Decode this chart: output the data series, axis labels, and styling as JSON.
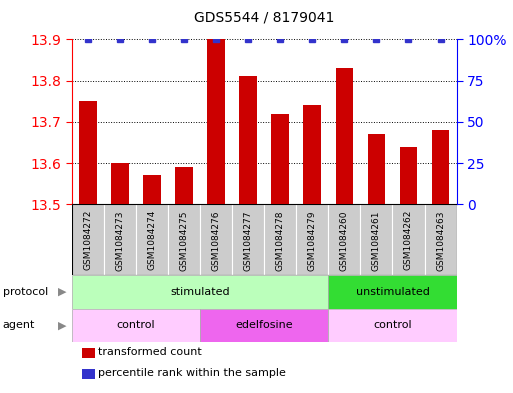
{
  "title": "GDS5544 / 8179041",
  "samples": [
    "GSM1084272",
    "GSM1084273",
    "GSM1084274",
    "GSM1084275",
    "GSM1084276",
    "GSM1084277",
    "GSM1084278",
    "GSM1084279",
    "GSM1084260",
    "GSM1084261",
    "GSM1084262",
    "GSM1084263"
  ],
  "transformed_count": [
    13.75,
    13.6,
    13.57,
    13.59,
    13.9,
    13.81,
    13.72,
    13.74,
    13.83,
    13.67,
    13.64,
    13.68
  ],
  "percentile_rank": [
    100,
    100,
    100,
    100,
    100,
    100,
    100,
    100,
    100,
    100,
    100,
    100
  ],
  "ylim_left": [
    13.5,
    13.9
  ],
  "ylim_right": [
    0,
    100
  ],
  "yticks_left": [
    13.5,
    13.6,
    13.7,
    13.8,
    13.9
  ],
  "yticks_right": [
    0,
    25,
    50,
    75,
    100
  ],
  "ytick_labels_right": [
    "0",
    "25",
    "50",
    "75",
    "100%"
  ],
  "bar_color": "#cc0000",
  "dot_color": "#3333cc",
  "protocol_groups": [
    {
      "label": "stimulated",
      "start": 0,
      "end": 8,
      "color": "#bbffbb"
    },
    {
      "label": "unstimulated",
      "start": 8,
      "end": 12,
      "color": "#33dd33"
    }
  ],
  "agent_groups": [
    {
      "label": "control",
      "start": 0,
      "end": 4,
      "color": "#ffccff"
    },
    {
      "label": "edelfosine",
      "start": 4,
      "end": 8,
      "color": "#ee66ee"
    },
    {
      "label": "control",
      "start": 8,
      "end": 12,
      "color": "#ffccff"
    }
  ],
  "legend_items": [
    {
      "label": "transformed count",
      "color": "#cc0000"
    },
    {
      "label": "percentile rank within the sample",
      "color": "#3333cc"
    }
  ],
  "protocol_label": "protocol",
  "agent_label": "agent",
  "bar_width": 0.55,
  "sample_label_bg": "#cccccc",
  "figsize": [
    5.13,
    3.93
  ],
  "dpi": 100
}
